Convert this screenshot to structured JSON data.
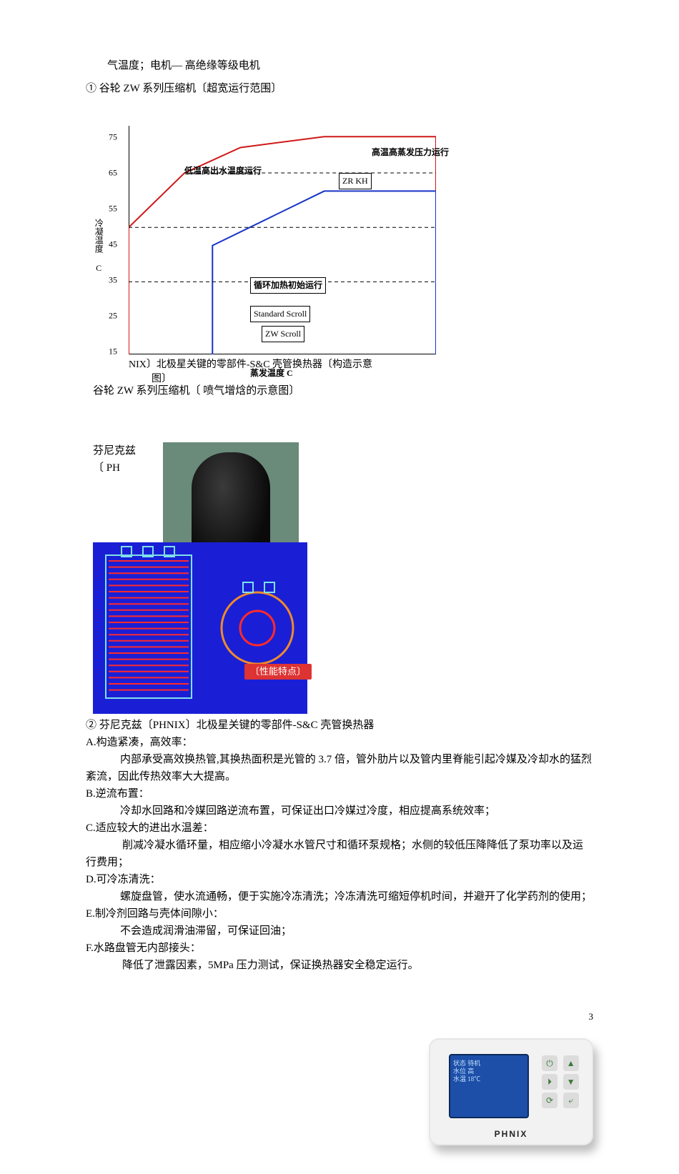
{
  "intro_line": "气温度；电机— 高绝缘等级电机",
  "item1_title": "① 谷轮 ZW 系列压缩机〔超宽运行范围〕",
  "caption_top": "谷轮 ZW 系列压缩机〔 喷气增焓的示意图〕",
  "device_caption_1": "芬尼克兹",
  "device_caption_2": "〔 PH",
  "overlay_a": "NIX〕北极星关键的零部件-S&C 壳管换热器〔构造示意",
  "overlay_b": "图〕",
  "chart": {
    "type": "line-envelope",
    "ylabel": "冷凝温度 C",
    "xlabel": "蒸发温度 C",
    "yticks": [
      15,
      25,
      35,
      45,
      55,
      65,
      75
    ],
    "xticks": [
      -40,
      -30,
      -25,
      -20,
      -15,
      -10,
      -5,
      0,
      5,
      10,
      15
    ],
    "xlim": [
      -40,
      15
    ],
    "ylim": [
      15,
      78
    ],
    "colors": {
      "inner_blue": "#1734c8",
      "outer_red": "#d01818",
      "axis": "#000000",
      "dash": "#000000"
    },
    "outer_red_poly": [
      [
        -40,
        15
      ],
      [
        -40,
        50
      ],
      [
        -30,
        65
      ],
      [
        -20,
        72
      ],
      [
        -5,
        75
      ],
      [
        15,
        75
      ],
      [
        15,
        15
      ]
    ],
    "inner_blue_poly": [
      [
        -25,
        15
      ],
      [
        -25,
        45
      ],
      [
        -5,
        60
      ],
      [
        15,
        60
      ],
      [
        15,
        15
      ]
    ],
    "dashed_lines": [
      {
        "y": 65,
        "x1": -30,
        "x2": 15
      },
      {
        "y": 50,
        "x1": -40,
        "x2": 15
      },
      {
        "y": 35,
        "x1": -40,
        "x2": 15
      }
    ],
    "labels": {
      "low_temp": "低温高出水温度运行",
      "high_temp": "高温高蒸发压力运行",
      "zrkh": "ZR KH",
      "cycle": "循环加热初始运行",
      "std": "Standard Scroll",
      "zw": "ZW Scroll"
    }
  },
  "diagram": {
    "bg": "#1a1fd6",
    "coil": "#ff2a2a",
    "shell": "#f08a2a",
    "outline": "#7fe0e8"
  },
  "redtag": "〔性能特点〕",
  "body": {
    "item2_head": "② 芬尼克兹〔PHNIX〕北极星关键的零部件-S&C 壳管换热器",
    "A_head": "A.构造紧凑，高效率：",
    "A_body1": "内部承受高效换热管,其换热面积是光管的 3.7 倍，管外肋片以及管内里脊能引起冷媒及冷却水的猛烈紊流，因此传热效率大大提高。",
    "B_head": "B.逆流布置：",
    "B_body": "冷却水回路和冷媒回路逆流布置，可保证出口冷媒过冷度，相应提高系统效率；",
    "C_head": "C.适应较大的进出水温差：",
    "C_body": "削减冷凝水循环量，相应缩小冷凝水水管尺寸和循环泵规格；水侧的较低压降降低了泵功率以及运行费用；",
    "D_head": "D.可冷冻清洗：",
    "D_body": "螺旋盘管，使水流通畅，便于实施冷冻清洗；冷冻清洗可缩短停机时间，并避开了化学药剂的使用；",
    "E_head": "E.制冷剂回路与壳体间隙小：",
    "E_body": "不会造成润滑油滞留，可保证回油；",
    "F_head": "F.水路盘管无内部接头：",
    "F_body": "降低了泄露因素，5MPa 压力测试，保证换热器安全稳定运行。"
  },
  "controller": {
    "screen_lines": [
      "状态  待机",
      "水位  高",
      "水温  18℃"
    ],
    "brand": "PHNIX",
    "buttons": [
      "⏻",
      "▲",
      "⏵",
      "▼",
      "⟳",
      "⤶"
    ]
  },
  "page_number": "3"
}
